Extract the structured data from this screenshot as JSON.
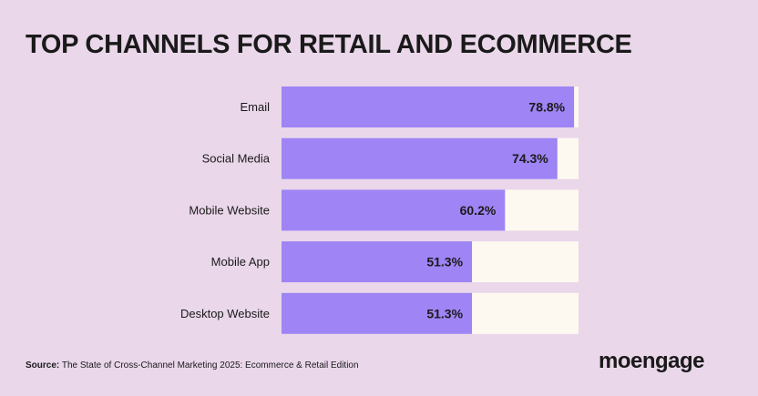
{
  "chart_data": {
    "type": "bar",
    "orientation": "horizontal",
    "title": "TOP CHANNELS FOR RETAIL AND ECOMMERCE",
    "categories": [
      "Email",
      "Social Media",
      "Mobile Website",
      "Mobile App",
      "Desktop Website"
    ],
    "values": [
      78.8,
      74.3,
      60.2,
      51.3,
      51.3
    ],
    "value_labels": [
      "78.8%",
      "74.3%",
      "60.2%",
      "51.3%",
      "51.3%"
    ],
    "xlim": [
      0,
      80
    ],
    "grid": false,
    "legend": "none",
    "colors": {
      "bar": "#9f84f5",
      "track": "#fdf9f0",
      "background": "#ead7ea"
    }
  },
  "source": {
    "label": "Source:",
    "text": "The State of Cross-Channel Marketing 2025: Ecommerce & Retail Edition"
  },
  "logo": {
    "text": "moengage"
  }
}
